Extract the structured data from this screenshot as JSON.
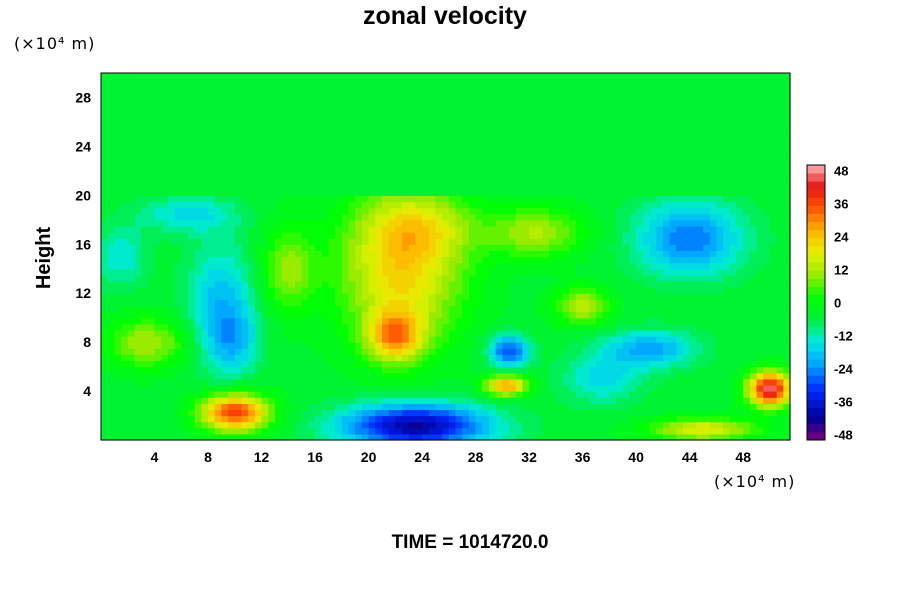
{
  "chart_data": {
    "type": "heatmap",
    "title": "zonal velocity",
    "ylabel": "Height",
    "xlabel": "",
    "x_unit": "(×10⁴ m)",
    "y_unit": "(×10⁴ m)",
    "xlim": [
      0,
      51.5
    ],
    "ylim": [
      0,
      30
    ],
    "x_ticks": [
      4,
      8,
      12,
      16,
      20,
      24,
      28,
      32,
      36,
      40,
      44,
      48
    ],
    "y_ticks": [
      4,
      8,
      12,
      16,
      20,
      24,
      28
    ],
    "colorbar": {
      "min": -50,
      "max": 50,
      "ticks": [
        48,
        36,
        24,
        12,
        0,
        -12,
        -24,
        -36,
        -48
      ]
    },
    "background_value": -4,
    "features": [
      {
        "x": 22.5,
        "y": 14.0,
        "rx": 4.5,
        "ry": 6.0,
        "value": 22
      },
      {
        "x": 22.0,
        "y": 8.5,
        "rx": 2.0,
        "ry": 2.0,
        "value": 24
      },
      {
        "x": 24.0,
        "y": 17.5,
        "rx": 4.0,
        "ry": 2.5,
        "value": 8
      },
      {
        "x": 32.5,
        "y": 17.0,
        "rx": 3.5,
        "ry": 2.0,
        "value": 12
      },
      {
        "x": 9.0,
        "y": 11.0,
        "rx": 2.5,
        "ry": 5.0,
        "value": -20
      },
      {
        "x": 10.0,
        "y": 8.0,
        "rx": 1.8,
        "ry": 2.5,
        "value": -14
      },
      {
        "x": 44.0,
        "y": 16.5,
        "rx": 4.0,
        "ry": 3.0,
        "value": -26
      },
      {
        "x": 41.0,
        "y": 7.5,
        "rx": 3.5,
        "ry": 1.5,
        "value": -22
      },
      {
        "x": 6.5,
        "y": 18.5,
        "rx": 3.5,
        "ry": 1.5,
        "value": -16
      },
      {
        "x": 23.5,
        "y": 1.2,
        "rx": 5.5,
        "ry": 1.8,
        "value": -42
      },
      {
        "x": 10.0,
        "y": 2.3,
        "rx": 2.5,
        "ry": 1.5,
        "value": 38
      },
      {
        "x": 50.0,
        "y": 4.2,
        "rx": 1.6,
        "ry": 1.4,
        "value": 46
      },
      {
        "x": 45.0,
        "y": 0.9,
        "rx": 4.0,
        "ry": 0.9,
        "value": 18
      },
      {
        "x": 30.3,
        "y": 4.5,
        "rx": 1.5,
        "ry": 0.8,
        "value": 30
      },
      {
        "x": 30.5,
        "y": 7.3,
        "rx": 1.5,
        "ry": 1.3,
        "value": -30
      },
      {
        "x": 1.5,
        "y": 15.0,
        "rx": 2.0,
        "ry": 2.5,
        "value": -14
      },
      {
        "x": 3.5,
        "y": 8.0,
        "rx": 3.0,
        "ry": 2.0,
        "value": 12
      },
      {
        "x": 14.0,
        "y": 14.0,
        "rx": 2.0,
        "ry": 3.5,
        "value": 10
      },
      {
        "x": 36.0,
        "y": 11.0,
        "rx": 2.0,
        "ry": 1.5,
        "value": 14
      },
      {
        "x": 37.5,
        "y": 5.0,
        "rx": 3.0,
        "ry": 2.0,
        "value": -16
      }
    ],
    "upper_layer": {
      "from_y": 20.2,
      "value": -4
    }
  },
  "footer": {
    "time_label": "TIME = 1014720.0"
  }
}
